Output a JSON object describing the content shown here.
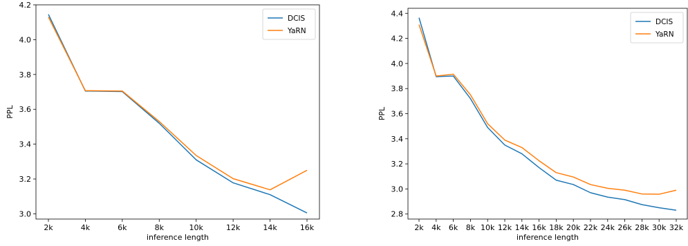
{
  "chart_data": [
    {
      "type": "line",
      "xlabel": "inference length",
      "ylabel": "PPL",
      "categories": [
        "2k",
        "4k",
        "6k",
        "8k",
        "10k",
        "12k",
        "14k",
        "16k"
      ],
      "ylim": [
        2.97,
        4.2
      ],
      "yticks": [
        "3.0",
        "3.2",
        "3.4",
        "3.6",
        "3.8",
        "4.0",
        "4.2"
      ],
      "ytick_values": [
        3.0,
        3.2,
        3.4,
        3.6,
        3.8,
        4.0,
        4.2
      ],
      "grid": false,
      "legend_position": "top-right",
      "series": [
        {
          "name": "DCIS",
          "color": "#1f77b4",
          "values": [
            4.145,
            3.705,
            3.702,
            3.52,
            3.31,
            3.178,
            3.11,
            3.005
          ]
        },
        {
          "name": "YaRN",
          "color": "#ff7f0e",
          "values": [
            4.13,
            3.707,
            3.705,
            3.53,
            3.335,
            3.202,
            3.138,
            3.25
          ]
        }
      ]
    },
    {
      "type": "line",
      "xlabel": "inference length",
      "ylabel": "PPL",
      "categories": [
        "2k",
        "4k",
        "6k",
        "8k",
        "10k",
        "12k",
        "14k",
        "16k",
        "18k",
        "20k",
        "22k",
        "24k",
        "26k",
        "28k",
        "30k",
        "32k"
      ],
      "ylim": [
        2.76,
        4.44
      ],
      "yticks": [
        "2.8",
        "3.0",
        "3.2",
        "3.4",
        "3.6",
        "3.8",
        "4.0",
        "4.2",
        "4.4"
      ],
      "ytick_values": [
        2.8,
        3.0,
        3.2,
        3.4,
        3.6,
        3.8,
        4.0,
        4.2,
        4.4
      ],
      "grid": false,
      "legend_position": "top-right",
      "series": [
        {
          "name": "DCIS",
          "color": "#1f77b4",
          "values": [
            4.365,
            3.895,
            3.9,
            3.72,
            3.49,
            3.35,
            3.28,
            3.17,
            3.07,
            3.035,
            2.97,
            2.935,
            2.915,
            2.875,
            2.85,
            2.83
          ]
        },
        {
          "name": "YaRN",
          "color": "#ff7f0e",
          "values": [
            4.31,
            3.9,
            3.915,
            3.75,
            3.52,
            3.39,
            3.33,
            3.225,
            3.13,
            3.095,
            3.035,
            3.005,
            2.99,
            2.96,
            2.958,
            2.99
          ]
        }
      ]
    }
  ]
}
